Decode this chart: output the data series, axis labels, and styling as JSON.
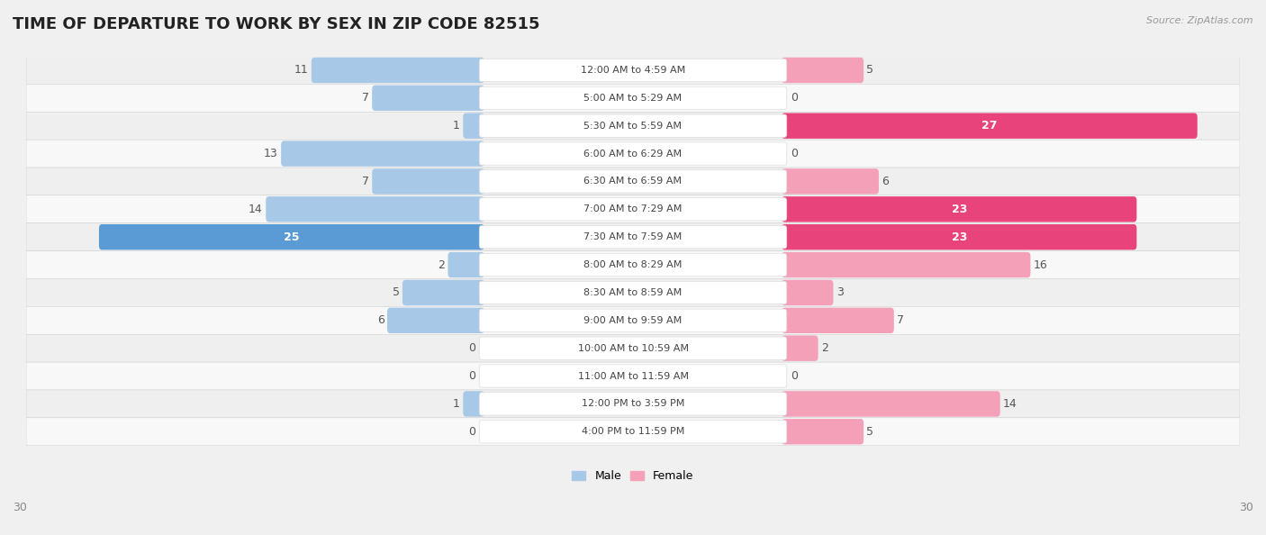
{
  "title": "TIME OF DEPARTURE TO WORK BY SEX IN ZIP CODE 82515",
  "source": "Source: ZipAtlas.com",
  "categories": [
    "12:00 AM to 4:59 AM",
    "5:00 AM to 5:29 AM",
    "5:30 AM to 5:59 AM",
    "6:00 AM to 6:29 AM",
    "6:30 AM to 6:59 AM",
    "7:00 AM to 7:29 AM",
    "7:30 AM to 7:59 AM",
    "8:00 AM to 8:29 AM",
    "8:30 AM to 8:59 AM",
    "9:00 AM to 9:59 AM",
    "10:00 AM to 10:59 AM",
    "11:00 AM to 11:59 AM",
    "12:00 PM to 3:59 PM",
    "4:00 PM to 11:59 PM"
  ],
  "male": [
    11,
    7,
    1,
    13,
    7,
    14,
    25,
    2,
    5,
    6,
    0,
    0,
    1,
    0
  ],
  "female": [
    5,
    0,
    27,
    0,
    6,
    23,
    23,
    16,
    3,
    7,
    2,
    0,
    14,
    5
  ],
  "male_color_small": "#a8c8e8",
  "male_color_large": "#5b9bd5",
  "female_color_small": "#f4a0b8",
  "female_color_large": "#e8437a",
  "row_bg_even": "#efefef",
  "row_bg_odd": "#f8f8f8",
  "bg_color": "#f0f0f0",
  "max_val": 30,
  "large_threshold": 18,
  "title_fontsize": 13,
  "label_fontsize": 9,
  "cat_fontsize": 8,
  "axis_fontsize": 9
}
